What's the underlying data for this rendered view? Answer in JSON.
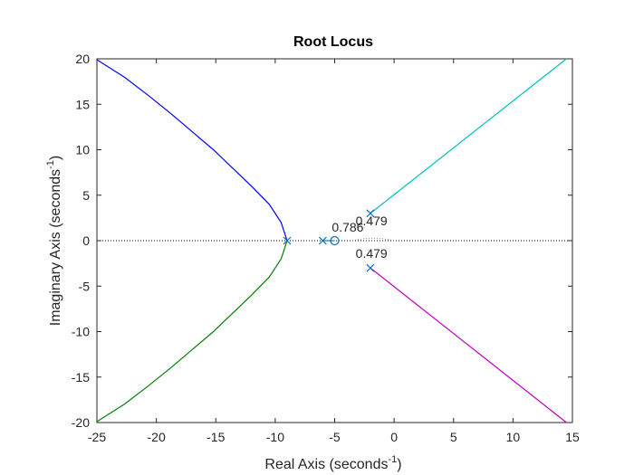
{
  "chart_data": {
    "type": "line",
    "title": "Root Locus",
    "xlabel": {
      "main": "Real Axis (seconds",
      "sup": "-1",
      "end": ")"
    },
    "ylabel": {
      "main": "Imaginary Axis (seconds",
      "sup": "-1",
      "end": ")"
    },
    "xlim": [
      -25,
      15
    ],
    "ylim": [
      -20,
      20
    ],
    "xticks": [
      -25,
      -20,
      -15,
      -10,
      -5,
      0,
      5,
      10,
      15
    ],
    "yticks": [
      -20,
      -15,
      -10,
      -5,
      0,
      5,
      10,
      15,
      20
    ],
    "grid": false,
    "colors": {
      "axes": "#262626",
      "marker": "#0072BD",
      "dotted": "#000000"
    },
    "series": [
      {
        "color": "#0000FF",
        "points": [
          [
            -9,
            0
          ],
          [
            -9.5,
            2
          ],
          [
            -10.5,
            4
          ],
          [
            -12,
            6
          ],
          [
            -13.6,
            8
          ],
          [
            -15.2,
            10
          ],
          [
            -17,
            12
          ],
          [
            -18.8,
            14
          ],
          [
            -20.7,
            16
          ],
          [
            -22.7,
            18
          ],
          [
            -25,
            19.9
          ]
        ]
      },
      {
        "color": "#008000",
        "points": [
          [
            -9,
            0
          ],
          [
            -9.5,
            -2
          ],
          [
            -10.5,
            -4
          ],
          [
            -12,
            -6
          ],
          [
            -13.6,
            -8
          ],
          [
            -15.2,
            -10
          ],
          [
            -17,
            -12
          ],
          [
            -18.8,
            -14
          ],
          [
            -20.7,
            -16
          ],
          [
            -22.7,
            -18
          ],
          [
            -25,
            -19.9
          ]
        ]
      },
      {
        "color": "#00BFBF",
        "points": [
          [
            -2,
            3
          ],
          [
            14.5,
            20
          ]
        ]
      },
      {
        "color": "#BF00BF",
        "points": [
          [
            -2,
            -3
          ],
          [
            14.5,
            -20
          ]
        ]
      },
      {
        "color": "#0072BD",
        "points": [
          [
            -6,
            0
          ],
          [
            -5,
            0
          ]
        ]
      }
    ],
    "poles": [
      [
        -9,
        0
      ],
      [
        -6,
        0
      ],
      [
        -2,
        3
      ],
      [
        -2,
        -3
      ]
    ],
    "zeros": [
      [
        -5,
        0
      ]
    ],
    "annotations": [
      {
        "text": "0.479",
        "x": -1.9,
        "y": 1.7
      },
      {
        "text": "0.786",
        "x": -3.9,
        "y": 1.0
      },
      {
        "text": "0.479",
        "x": -1.9,
        "y": -1.9
      }
    ]
  }
}
